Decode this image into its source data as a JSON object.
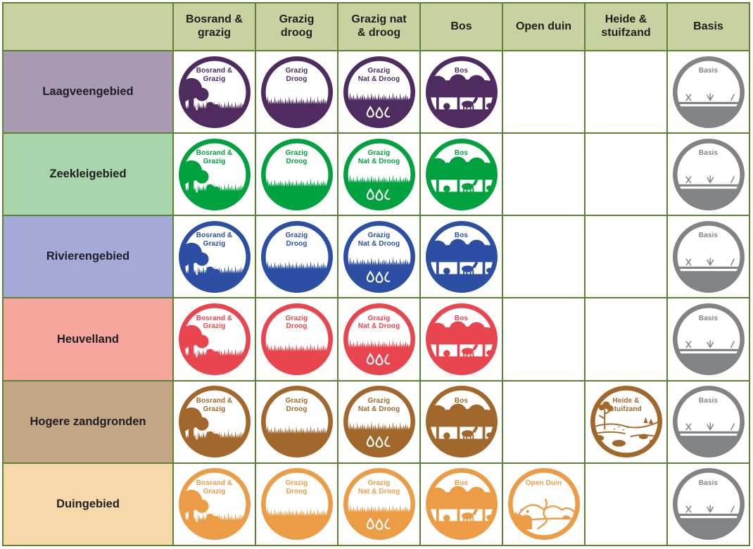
{
  "colors": {
    "border": "#5d8236",
    "header_bg": "#c8d2a0",
    "header_text": "#1f1f1f",
    "cell_bg": "#ffffff",
    "basis_gray": "#818487"
  },
  "icons": {
    "bosrand-grazig": "tree-edge-and-grass-icon",
    "grazig-droog": "dry-grassland-icon",
    "grazig-nat-droog": "wet-and-dry-grassland-icon",
    "bos": "forest-with-animals-icon",
    "open-duin": "open-dune-landscape-icon",
    "heide-stuifzand": "heath-driftsand-landscape-icon",
    "basis": "basis-soil-sprouts-icon"
  },
  "columns": [
    {
      "id": "bosrand-grazig",
      "label": "Bosrand &\ngrazig"
    },
    {
      "id": "grazig-droog",
      "label": "Grazig\ndroog"
    },
    {
      "id": "grazig-nat-droog",
      "label": "Grazig nat\n& droog"
    },
    {
      "id": "bos",
      "label": "Bos"
    },
    {
      "id": "open-duin",
      "label": "Open duin"
    },
    {
      "id": "heide-stuifzand",
      "label": "Heide &\nstuifzand"
    },
    {
      "id": "basis",
      "label": "Basis"
    }
  ],
  "rows": [
    {
      "id": "laagveengebied",
      "label": "Laagveengebied",
      "bg": "#a89ab1",
      "color": "#4f2b5f",
      "cells": [
        {
          "variant": "bosrand-grazig",
          "label": "Bosrand &\nGrazig"
        },
        {
          "variant": "grazig-droog",
          "label": "Grazig\nDroog"
        },
        {
          "variant": "grazig-nat-droog",
          "label": "Grazig\nNat & Droog"
        },
        {
          "variant": "bos",
          "label": "Bos"
        },
        null,
        null,
        {
          "variant": "basis",
          "label": "Basis",
          "color": "#818487"
        }
      ]
    },
    {
      "id": "zeekleigebied",
      "label": "Zeekleigebied",
      "bg": "#a9d4a9",
      "color": "#00a23f",
      "cells": [
        {
          "variant": "bosrand-grazig",
          "label": "Bosrand &\nGrazig"
        },
        {
          "variant": "grazig-droog",
          "label": "Grazig\nDroog"
        },
        {
          "variant": "grazig-nat-droog",
          "label": "Grazig\nNat & Droog"
        },
        {
          "variant": "bos",
          "label": "Bos"
        },
        null,
        null,
        {
          "variant": "basis",
          "label": "Basis",
          "color": "#818487"
        }
      ]
    },
    {
      "id": "rivierengebied",
      "label": "Rivierengebied",
      "bg": "#a4a9d8",
      "color": "#2c4fa4",
      "cells": [
        {
          "variant": "bosrand-grazig",
          "label": "Bosrand &\nGrazig"
        },
        {
          "variant": "grazig-droog",
          "label": "Grazig\nDroog"
        },
        {
          "variant": "grazig-nat-droog",
          "label": "Grazig\nNat & Droog"
        },
        {
          "variant": "bos",
          "label": "Bos"
        },
        null,
        null,
        {
          "variant": "basis",
          "label": "Basis",
          "color": "#818487"
        }
      ]
    },
    {
      "id": "heuvelland",
      "label": "Heuvelland",
      "bg": "#f7a69d",
      "color": "#e8454e",
      "cells": [
        {
          "variant": "bosrand-grazig",
          "label": "Bosrand &\nGrazig"
        },
        {
          "variant": "grazig-droog",
          "label": "Grazig\nDroog"
        },
        {
          "variant": "grazig-nat-droog",
          "label": "Grazig\nNat & Droog"
        },
        {
          "variant": "bos",
          "label": "Bos"
        },
        null,
        null,
        {
          "variant": "basis",
          "label": "Basis",
          "color": "#818487"
        }
      ]
    },
    {
      "id": "hogere-zandgronden",
      "label": "Hogere zandgronden",
      "bg": "#c2a685",
      "color": "#a2672b",
      "cells": [
        {
          "variant": "bosrand-grazig",
          "label": "Bosrand &\nGrazig"
        },
        {
          "variant": "grazig-droog",
          "label": "Grazig\nDroog"
        },
        {
          "variant": "grazig-nat-droog",
          "label": "Grazig\nNat & Droog"
        },
        {
          "variant": "bos",
          "label": "Bos"
        },
        null,
        {
          "variant": "heide-stuifzand",
          "label": "Heide &\nstuifzand"
        },
        {
          "variant": "basis",
          "label": "Basis",
          "color": "#818487"
        }
      ]
    },
    {
      "id": "duingebied",
      "label": "Duingebied",
      "bg": "#f7d8a9",
      "color": "#eb9c45",
      "cells": [
        {
          "variant": "bosrand-grazig",
          "label": "Bosrand &\nGrazig"
        },
        {
          "variant": "grazig-droog",
          "label": "Grazig\nDroog"
        },
        {
          "variant": "grazig-nat-droog",
          "label": "Grazig\nNat & Droog"
        },
        {
          "variant": "bos",
          "label": "Bos"
        },
        {
          "variant": "open-duin",
          "label": "Open Duin"
        },
        null,
        {
          "variant": "basis",
          "label": "Basis",
          "color": "#818487"
        }
      ]
    }
  ]
}
